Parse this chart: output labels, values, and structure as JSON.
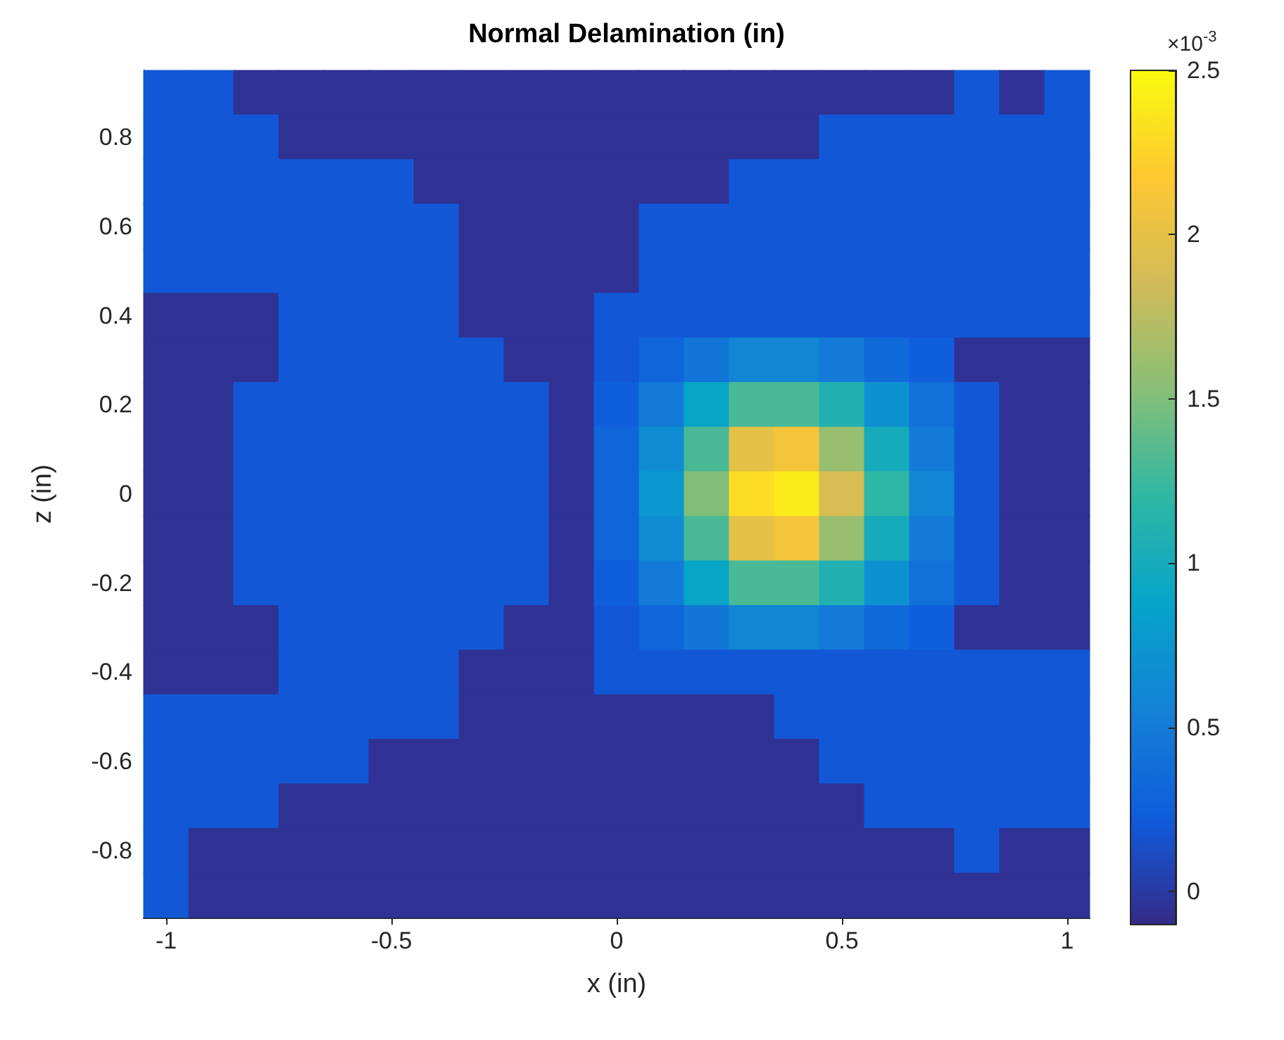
{
  "chart_data": {
    "type": "heatmap",
    "title": "Normal Delamination (in)",
    "xlabel": "x (in)",
    "ylabel": "z (in)",
    "clabel": "×10$^{-3}$",
    "categories": [
      "-1",
      null,
      null,
      null,
      null,
      "-0.5",
      null,
      null,
      null,
      null,
      "0",
      null,
      null,
      null,
      null,
      "0.5",
      null,
      null,
      null,
      null,
      "1"
    ],
    "y_categories": [
      null,
      "0.8",
      null,
      "0.6",
      null,
      "0.4",
      null,
      "0.2",
      null,
      "0",
      null,
      "-0.2",
      null,
      "-0.4",
      null,
      "-0.6",
      null,
      "-0.8",
      null
    ],
    "cells": [
      [
        0.2,
        0.2,
        -0.05,
        -0.05,
        -0.05,
        -0.05,
        -0.05,
        -0.05,
        -0.05,
        -0.05,
        -0.05,
        -0.05,
        -0.05,
        -0.05,
        -0.05,
        -0.05,
        -0.05,
        -0.05,
        0.2,
        -0.05,
        0.2
      ],
      [
        0.2,
        0.2,
        0.2,
        -0.05,
        -0.05,
        -0.05,
        -0.05,
        -0.05,
        -0.05,
        -0.05,
        -0.05,
        -0.05,
        -0.05,
        -0.05,
        -0.05,
        0.2,
        0.2,
        0.2,
        0.2,
        0.2,
        0.2
      ],
      [
        0.2,
        0.2,
        0.2,
        0.2,
        0.2,
        0.2,
        -0.05,
        -0.05,
        -0.05,
        -0.05,
        -0.05,
        -0.05,
        -0.05,
        0.2,
        0.2,
        0.2,
        0.2,
        0.2,
        0.2,
        0.2,
        0.2
      ],
      [
        0.2,
        0.2,
        0.2,
        0.2,
        0.2,
        0.2,
        0.2,
        -0.05,
        -0.05,
        -0.05,
        -0.05,
        0.2,
        0.2,
        0.2,
        0.2,
        0.2,
        0.2,
        0.2,
        0.2,
        0.2,
        0.2
      ],
      [
        0.2,
        0.2,
        0.2,
        0.2,
        0.2,
        0.2,
        0.2,
        -0.05,
        -0.05,
        -0.05,
        -0.05,
        0.2,
        0.2,
        0.2,
        0.2,
        0.2,
        0.2,
        0.2,
        0.2,
        0.2,
        0.2
      ],
      [
        -0.05,
        -0.05,
        -0.05,
        0.2,
        0.2,
        0.2,
        0.2,
        -0.05,
        -0.05,
        -0.05,
        0.2,
        0.2,
        0.2,
        0.2,
        0.2,
        0.2,
        0.2,
        0.2,
        0.2,
        0.2,
        0.2
      ],
      [
        -0.05,
        -0.05,
        -0.05,
        0.2,
        0.2,
        0.2,
        0.2,
        0.2,
        -0.05,
        -0.05,
        0.2,
        0.3,
        0.45,
        0.6,
        0.6,
        0.5,
        0.35,
        0.25,
        -0.05,
        -0.05,
        -0.05
      ],
      [
        -0.05,
        -0.05,
        0.2,
        0.2,
        0.2,
        0.2,
        0.2,
        0.2,
        0.2,
        -0.05,
        0.25,
        0.5,
        0.9,
        1.3,
        1.3,
        1.1,
        0.7,
        0.4,
        0.2,
        -0.05,
        -0.05
      ],
      [
        -0.05,
        -0.05,
        0.2,
        0.2,
        0.2,
        0.2,
        0.2,
        0.2,
        0.2,
        -0.05,
        0.3,
        0.65,
        1.3,
        2.0,
        2.1,
        1.6,
        1.0,
        0.5,
        0.2,
        -0.05,
        -0.05
      ],
      [
        -0.05,
        -0.05,
        0.2,
        0.2,
        0.2,
        0.2,
        0.2,
        0.2,
        0.2,
        -0.05,
        0.3,
        0.75,
        1.5,
        2.3,
        2.4,
        1.9,
        1.2,
        0.6,
        0.2,
        -0.05,
        -0.05
      ],
      [
        -0.05,
        -0.05,
        0.2,
        0.2,
        0.2,
        0.2,
        0.2,
        0.2,
        0.2,
        -0.05,
        0.3,
        0.65,
        1.3,
        2.0,
        2.1,
        1.6,
        1.0,
        0.5,
        0.2,
        -0.05,
        -0.05
      ],
      [
        -0.05,
        -0.05,
        0.2,
        0.2,
        0.2,
        0.2,
        0.2,
        0.2,
        0.2,
        -0.05,
        0.25,
        0.5,
        0.9,
        1.3,
        1.3,
        1.1,
        0.7,
        0.4,
        0.2,
        -0.05,
        -0.05
      ],
      [
        -0.05,
        -0.05,
        -0.05,
        0.2,
        0.2,
        0.2,
        0.2,
        0.2,
        -0.05,
        -0.05,
        0.2,
        0.3,
        0.45,
        0.6,
        0.6,
        0.5,
        0.35,
        0.25,
        -0.05,
        -0.05,
        -0.05
      ],
      [
        -0.05,
        -0.05,
        -0.05,
        0.2,
        0.2,
        0.2,
        0.2,
        -0.05,
        -0.05,
        -0.05,
        0.2,
        0.2,
        0.2,
        0.2,
        0.2,
        0.2,
        0.2,
        0.2,
        0.2,
        0.2,
        0.2
      ],
      [
        0.2,
        0.2,
        0.2,
        0.2,
        0.2,
        0.2,
        0.2,
        -0.05,
        -0.05,
        -0.05,
        -0.05,
        -0.05,
        -0.05,
        -0.05,
        0.2,
        0.2,
        0.2,
        0.2,
        0.2,
        0.2,
        0.2
      ],
      [
        0.2,
        0.2,
        0.2,
        0.2,
        0.2,
        -0.05,
        -0.05,
        -0.05,
        -0.05,
        -0.05,
        -0.05,
        -0.05,
        -0.05,
        -0.05,
        -0.05,
        0.2,
        0.2,
        0.2,
        0.2,
        0.2,
        0.2
      ],
      [
        0.2,
        0.2,
        0.2,
        -0.05,
        -0.05,
        -0.05,
        -0.05,
        -0.05,
        -0.05,
        -0.05,
        -0.05,
        -0.05,
        -0.05,
        -0.05,
        -0.05,
        -0.05,
        0.2,
        0.2,
        0.2,
        0.2,
        0.2
      ],
      [
        0.2,
        -0.05,
        -0.05,
        -0.05,
        -0.05,
        -0.05,
        -0.05,
        -0.05,
        -0.05,
        -0.05,
        -0.05,
        -0.05,
        -0.05,
        -0.05,
        -0.05,
        -0.05,
        -0.05,
        -0.05,
        0.2,
        -0.05,
        -0.05
      ],
      [
        0.2,
        -0.05,
        -0.05,
        -0.05,
        -0.05,
        -0.05,
        -0.05,
        -0.05,
        -0.05,
        -0.05,
        -0.05,
        -0.05,
        -0.05,
        -0.05,
        -0.05,
        -0.05,
        -0.05,
        -0.05,
        -0.05,
        -0.05,
        -0.05
      ]
    ],
    "clim": [
      -0.1,
      2.5
    ],
    "cticks": [
      0,
      0.5,
      1,
      1.5,
      2,
      2.5
    ]
  }
}
